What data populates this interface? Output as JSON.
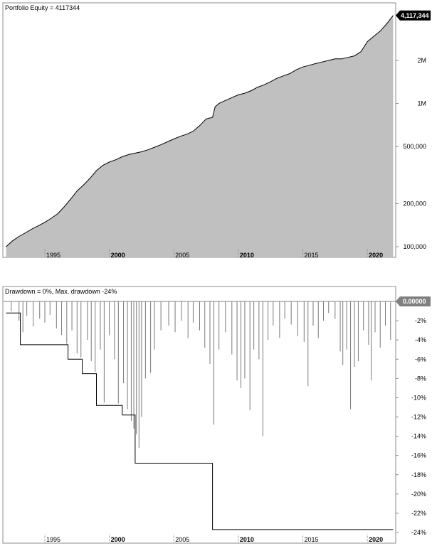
{
  "chart_data": [
    {
      "type": "area",
      "title": "Portfolio Equity = 4117344",
      "y_scale": "log",
      "ylim": [
        100000,
        4300000
      ],
      "xlim": [
        1991.8,
        2022.2
      ],
      "x_ticks": [
        {
          "label": "1995",
          "value": 1995,
          "bold": false
        },
        {
          "label": "2000",
          "value": 2000,
          "bold": true
        },
        {
          "label": "2005",
          "value": 2005,
          "bold": false
        },
        {
          "label": "2010",
          "value": 2010,
          "bold": true
        },
        {
          "label": "2015",
          "value": 2015,
          "bold": false
        },
        {
          "label": "2020",
          "value": 2020,
          "bold": true
        }
      ],
      "y_ticks": [
        {
          "label": "100,000",
          "value": 100000
        },
        {
          "label": "200,000",
          "value": 200000
        },
        {
          "label": "500,000",
          "value": 500000
        },
        {
          "label": "1M",
          "value": 1000000
        },
        {
          "label": "2M",
          "value": 2000000
        }
      ],
      "last_value_label": "4,117,344",
      "series": [
        {
          "x": [
            1992.0,
            1992.5,
            1993.0,
            1993.5,
            1994.0,
            1994.5,
            1995.0,
            1995.5,
            1996.0,
            1996.5,
            1997.0,
            1997.5,
            1998.0,
            1998.5,
            1999.0,
            1999.5,
            2000.0,
            2000.5,
            2001.0,
            2001.5,
            2002.0,
            2002.5,
            2003.0,
            2003.5,
            2004.0,
            2004.5,
            2005.0,
            2005.5,
            2006.0,
            2006.5,
            2007.0,
            2007.5,
            2008.0,
            2008.2,
            2008.5,
            2009.0,
            2009.5,
            2010.0,
            2010.5,
            2011.0,
            2011.5,
            2012.0,
            2012.5,
            2013.0,
            2013.5,
            2014.0,
            2014.5,
            2015.0,
            2015.5,
            2016.0,
            2016.5,
            2017.0,
            2017.5,
            2018.0,
            2018.5,
            2019.0,
            2019.5,
            2020.0,
            2020.5,
            2021.0,
            2021.5,
            2022.0
          ],
          "values": [
            100000,
            110000,
            118000,
            125000,
            133000,
            140000,
            148000,
            158000,
            170000,
            190000,
            215000,
            245000,
            270000,
            300000,
            340000,
            370000,
            390000,
            405000,
            425000,
            440000,
            450000,
            460000,
            475000,
            495000,
            515000,
            540000,
            565000,
            590000,
            610000,
            640000,
            700000,
            780000,
            800000,
            950000,
            1000000,
            1050000,
            1100000,
            1150000,
            1180000,
            1230000,
            1300000,
            1350000,
            1420000,
            1500000,
            1560000,
            1620000,
            1720000,
            1800000,
            1850000,
            1900000,
            1950000,
            2000000,
            2050000,
            2050000,
            2100000,
            2150000,
            2300000,
            2700000,
            2950000,
            3200000,
            3600000,
            4117344
          ]
        }
      ]
    },
    {
      "type": "line",
      "title": "Drawdown = 0%, Max. drawdown -24%",
      "ylim": [
        -24.5,
        0.5
      ],
      "xlim": [
        1991.8,
        2022.2
      ],
      "x_ticks": [
        {
          "label": "1995",
          "value": 1995,
          "bold": false
        },
        {
          "label": "2000",
          "value": 2000,
          "bold": true
        },
        {
          "label": "2005",
          "value": 2005,
          "bold": false
        },
        {
          "label": "2010",
          "value": 2010,
          "bold": true
        },
        {
          "label": "2015",
          "value": 2015,
          "bold": false
        },
        {
          "label": "2020",
          "value": 2020,
          "bold": true
        }
      ],
      "y_ticks": [
        {
          "label": "-2%",
          "value": -2
        },
        {
          "label": "-4%",
          "value": -4
        },
        {
          "label": "-6%",
          "value": -6
        },
        {
          "label": "-8%",
          "value": -8
        },
        {
          "label": "-10%",
          "value": -10
        },
        {
          "label": "-12%",
          "value": -12
        },
        {
          "label": "-14%",
          "value": -14
        },
        {
          "label": "-16%",
          "value": -16
        },
        {
          "label": "-18%",
          "value": -18
        },
        {
          "label": "-20%",
          "value": -20
        },
        {
          "label": "-22%",
          "value": -22
        },
        {
          "label": "-24%",
          "value": -24
        }
      ],
      "last_value_label": "0.00000",
      "max_drawdown_x": [
        1992.0,
        1993.1,
        1993.1,
        1996.8,
        1996.8,
        1997.9,
        1997.9,
        1999.0,
        1999.0,
        2001.0,
        2001.0,
        2002.0,
        2002.0,
        2008.0,
        2008.0,
        2022.0
      ],
      "max_drawdown_values": [
        -1.2,
        -1.2,
        -4.5,
        -4.5,
        -6.0,
        -6.0,
        -7.5,
        -7.5,
        -10.8,
        -10.8,
        -11.8,
        -11.8,
        -16.8,
        -16.8,
        -23.7,
        -23.7
      ],
      "drawdown_spikes": [
        {
          "x": 1992.4,
          "v": -1.0
        },
        {
          "x": 1993.0,
          "v": -2.0
        },
        {
          "x": 1993.3,
          "v": -3.2
        },
        {
          "x": 1993.6,
          "v": -1.5
        },
        {
          "x": 1994.1,
          "v": -2.6
        },
        {
          "x": 1994.6,
          "v": -1.8
        },
        {
          "x": 1995.0,
          "v": -2.2
        },
        {
          "x": 1995.4,
          "v": -1.4
        },
        {
          "x": 1995.9,
          "v": -2.8
        },
        {
          "x": 1996.3,
          "v": -3.5
        },
        {
          "x": 1996.7,
          "v": -4.4
        },
        {
          "x": 1997.1,
          "v": -3.0
        },
        {
          "x": 1997.5,
          "v": -5.4
        },
        {
          "x": 1997.8,
          "v": -5.8
        },
        {
          "x": 1998.3,
          "v": -4.0
        },
        {
          "x": 1998.6,
          "v": -6.2
        },
        {
          "x": 1998.9,
          "v": -7.3
        },
        {
          "x": 1999.3,
          "v": -5.0
        },
        {
          "x": 1999.6,
          "v": -10.5
        },
        {
          "x": 2000.0,
          "v": -3.5
        },
        {
          "x": 2000.4,
          "v": -6.0
        },
        {
          "x": 2000.7,
          "v": -10.6
        },
        {
          "x": 2001.1,
          "v": -8.5
        },
        {
          "x": 2001.4,
          "v": -11.2
        },
        {
          "x": 2001.7,
          "v": -12.4
        },
        {
          "x": 2001.9,
          "v": -13.2
        },
        {
          "x": 2002.1,
          "v": -13.8
        },
        {
          "x": 2002.3,
          "v": -15.2
        },
        {
          "x": 2002.5,
          "v": -12.0
        },
        {
          "x": 2002.8,
          "v": -8.0
        },
        {
          "x": 2003.2,
          "v": -7.4
        },
        {
          "x": 2003.5,
          "v": -5.0
        },
        {
          "x": 2004.0,
          "v": -3.0
        },
        {
          "x": 2004.6,
          "v": -2.5
        },
        {
          "x": 2005.1,
          "v": -3.2
        },
        {
          "x": 2005.6,
          "v": -2.0
        },
        {
          "x": 2006.1,
          "v": -3.8
        },
        {
          "x": 2006.5,
          "v": -2.2
        },
        {
          "x": 2007.0,
          "v": -3.0
        },
        {
          "x": 2007.4,
          "v": -4.8
        },
        {
          "x": 2007.8,
          "v": -6.5
        },
        {
          "x": 2008.1,
          "v": -12.8
        },
        {
          "x": 2008.5,
          "v": -5.0
        },
        {
          "x": 2009.0,
          "v": -3.2
        },
        {
          "x": 2009.5,
          "v": -5.5
        },
        {
          "x": 2009.9,
          "v": -8.2
        },
        {
          "x": 2010.2,
          "v": -9.0
        },
        {
          "x": 2010.5,
          "v": -8.0
        },
        {
          "x": 2010.9,
          "v": -11.3
        },
        {
          "x": 2011.2,
          "v": -5.0
        },
        {
          "x": 2011.6,
          "v": -6.0
        },
        {
          "x": 2011.9,
          "v": -14.0
        },
        {
          "x": 2012.3,
          "v": -4.0
        },
        {
          "x": 2012.7,
          "v": -2.5
        },
        {
          "x": 2013.2,
          "v": -3.8
        },
        {
          "x": 2013.6,
          "v": -1.8
        },
        {
          "x": 2014.1,
          "v": -2.4
        },
        {
          "x": 2014.6,
          "v": -3.6
        },
        {
          "x": 2015.1,
          "v": -4.2
        },
        {
          "x": 2015.4,
          "v": -8.8
        },
        {
          "x": 2015.8,
          "v": -2.5
        },
        {
          "x": 2016.2,
          "v": -3.8
        },
        {
          "x": 2016.6,
          "v": -2.0
        },
        {
          "x": 2017.0,
          "v": -1.2
        },
        {
          "x": 2017.5,
          "v": -1.8
        },
        {
          "x": 2017.9,
          "v": -5.2
        },
        {
          "x": 2018.1,
          "v": -6.6
        },
        {
          "x": 2018.4,
          "v": -5.0
        },
        {
          "x": 2018.7,
          "v": -11.2
        },
        {
          "x": 2019.0,
          "v": -6.8
        },
        {
          "x": 2019.3,
          "v": -6.2
        },
        {
          "x": 2019.7,
          "v": -3.0
        },
        {
          "x": 2020.1,
          "v": -4.5
        },
        {
          "x": 2020.3,
          "v": -8.2
        },
        {
          "x": 2020.6,
          "v": -3.2
        },
        {
          "x": 2021.0,
          "v": -4.8
        },
        {
          "x": 2021.4,
          "v": -2.5
        },
        {
          "x": 2021.8,
          "v": -4.0
        }
      ]
    }
  ]
}
